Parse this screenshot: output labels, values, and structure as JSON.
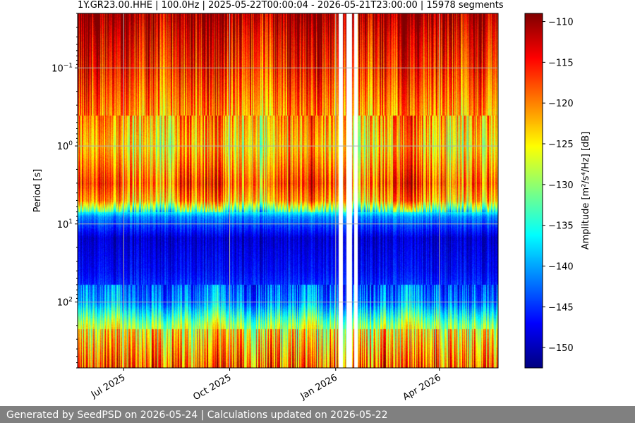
{
  "chart_data": {
    "type": "heatmap",
    "title": "1Y.GR23.00.HHE | 100.0Hz | 2025-05-22T00:00:04 - 2026-05-21T23:00:00 | 15978 segments",
    "ylabel": "Period [s]",
    "y_scale": "log",
    "y_range": [
      0.02,
      700
    ],
    "y_inverted": true,
    "y_ticks": [
      {
        "value": 0.1,
        "label": "10",
        "exp": "−1"
      },
      {
        "value": 1,
        "label": "10",
        "exp": "0"
      },
      {
        "value": 10,
        "label": "10",
        "exp": "1"
      },
      {
        "value": 100,
        "label": "10",
        "exp": "2"
      }
    ],
    "x_range": [
      "2025-05-22",
      "2026-05-21"
    ],
    "x_ticks": [
      {
        "date": "2025-07-01",
        "label": "Jul 2025"
      },
      {
        "date": "2025-10-01",
        "label": "Oct 2025"
      },
      {
        "date": "2026-01-01",
        "label": "Jan 2026"
      },
      {
        "date": "2026-04-01",
        "label": "Apr 2026"
      }
    ],
    "grid": true,
    "data_gaps": [
      [
        "2026-01-03",
        "2026-01-07"
      ],
      [
        "2026-01-10",
        "2026-01-15"
      ],
      [
        "2026-01-17",
        "2026-01-20"
      ]
    ],
    "colorbar": {
      "label": "Amplitude [m²/s⁴/Hz] [dB]",
      "colormap": "jet",
      "range": [
        -152.5,
        -109
      ],
      "ticks": [
        -110,
        -115,
        -120,
        -125,
        -130,
        -135,
        -140,
        -145,
        -150
      ],
      "tick_labels": [
        "−110",
        "−115",
        "−120",
        "−125",
        "−130",
        "−135",
        "−140",
        "−145",
        "−150"
      ]
    },
    "amplitude_profile": {
      "description_units": "period s -> dB",
      "period": [
        0.02,
        0.04,
        0.1,
        0.3,
        1,
        3,
        5,
        8,
        15,
        40,
        100,
        200,
        700
      ],
      "db": [
        -110,
        -113,
        -116,
        -120,
        -124,
        -118,
        -122,
        -140,
        -148,
        -146,
        -142,
        -130,
        -122
      ]
    }
  },
  "footer": {
    "text": "Generated by SeedPSD on 2026-05-24 | Calculations updated on 2026-05-22"
  }
}
